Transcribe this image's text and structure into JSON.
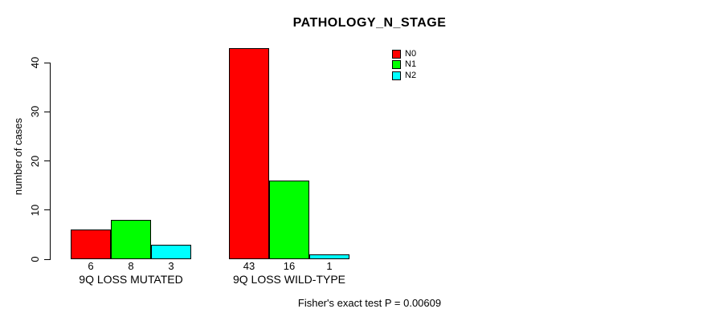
{
  "chart_data": {
    "type": "bar",
    "title": "PATHOLOGY_N_STAGE",
    "ylabel": "number of cases",
    "xlabel": "",
    "categories": [
      "9Q LOSS MUTATED",
      "9Q LOSS WILD-TYPE"
    ],
    "series": [
      {
        "name": "N0",
        "color": "#FF0000",
        "values": [
          6,
          43
        ]
      },
      {
        "name": "N1",
        "color": "#00FF00",
        "values": [
          8,
          16
        ]
      },
      {
        "name": "N2",
        "color": "#00FFFF",
        "values": [
          3,
          1
        ]
      }
    ],
    "yticks": [
      0,
      10,
      20,
      30,
      40
    ],
    "ylim": [
      0,
      43
    ],
    "grid": false,
    "legend_position": "top-right",
    "bar_value_labels_shown": true,
    "annotation": "Fisher's exact test P = 0.00609"
  }
}
